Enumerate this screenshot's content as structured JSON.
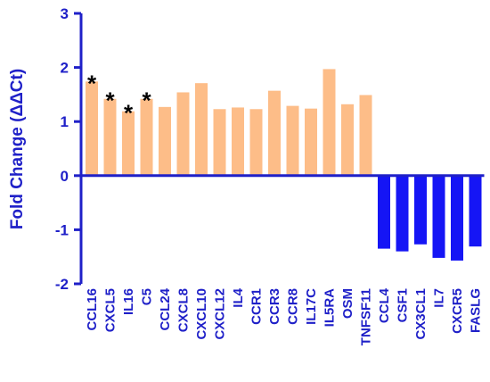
{
  "chart_data": {
    "type": "bar",
    "title": "",
    "xlabel": "",
    "ylabel": "Fold Change (ΔΔCt)",
    "ylim": [
      -2,
      3
    ],
    "yticks": [
      "3",
      "2",
      "1",
      "0",
      "-1",
      "-2"
    ],
    "grid": false,
    "categories": [
      "CCL16",
      "CXCL5",
      "IL16",
      "C5",
      "CCL24",
      "CXCL8",
      "CXCL10",
      "CXCL12",
      "IL4",
      "CCR1",
      "CCR3",
      "CCR8",
      "IL17C",
      "IL5RA",
      "OSM",
      "TNFSF11",
      "CCL4",
      "CSF1",
      "CX3CL1",
      "IL7",
      "CXCR5",
      "FASLG"
    ],
    "values": [
      1.74,
      1.42,
      1.19,
      1.42,
      1.27,
      1.54,
      1.71,
      1.23,
      1.26,
      1.23,
      1.57,
      1.29,
      1.24,
      1.97,
      1.32,
      1.49,
      -1.35,
      -1.4,
      -1.27,
      -1.52,
      -1.57,
      -1.31
    ],
    "annotations": [
      {
        "category": "CCL16",
        "text": "*"
      },
      {
        "category": "CXCL5",
        "text": "*"
      },
      {
        "category": "IL16",
        "text": "*"
      },
      {
        "category": "C5",
        "text": "*"
      }
    ],
    "colors": {
      "up": "#fdbd88",
      "down": "#1515f5",
      "axis": "#1f20c8",
      "annotation": "#000000"
    }
  }
}
